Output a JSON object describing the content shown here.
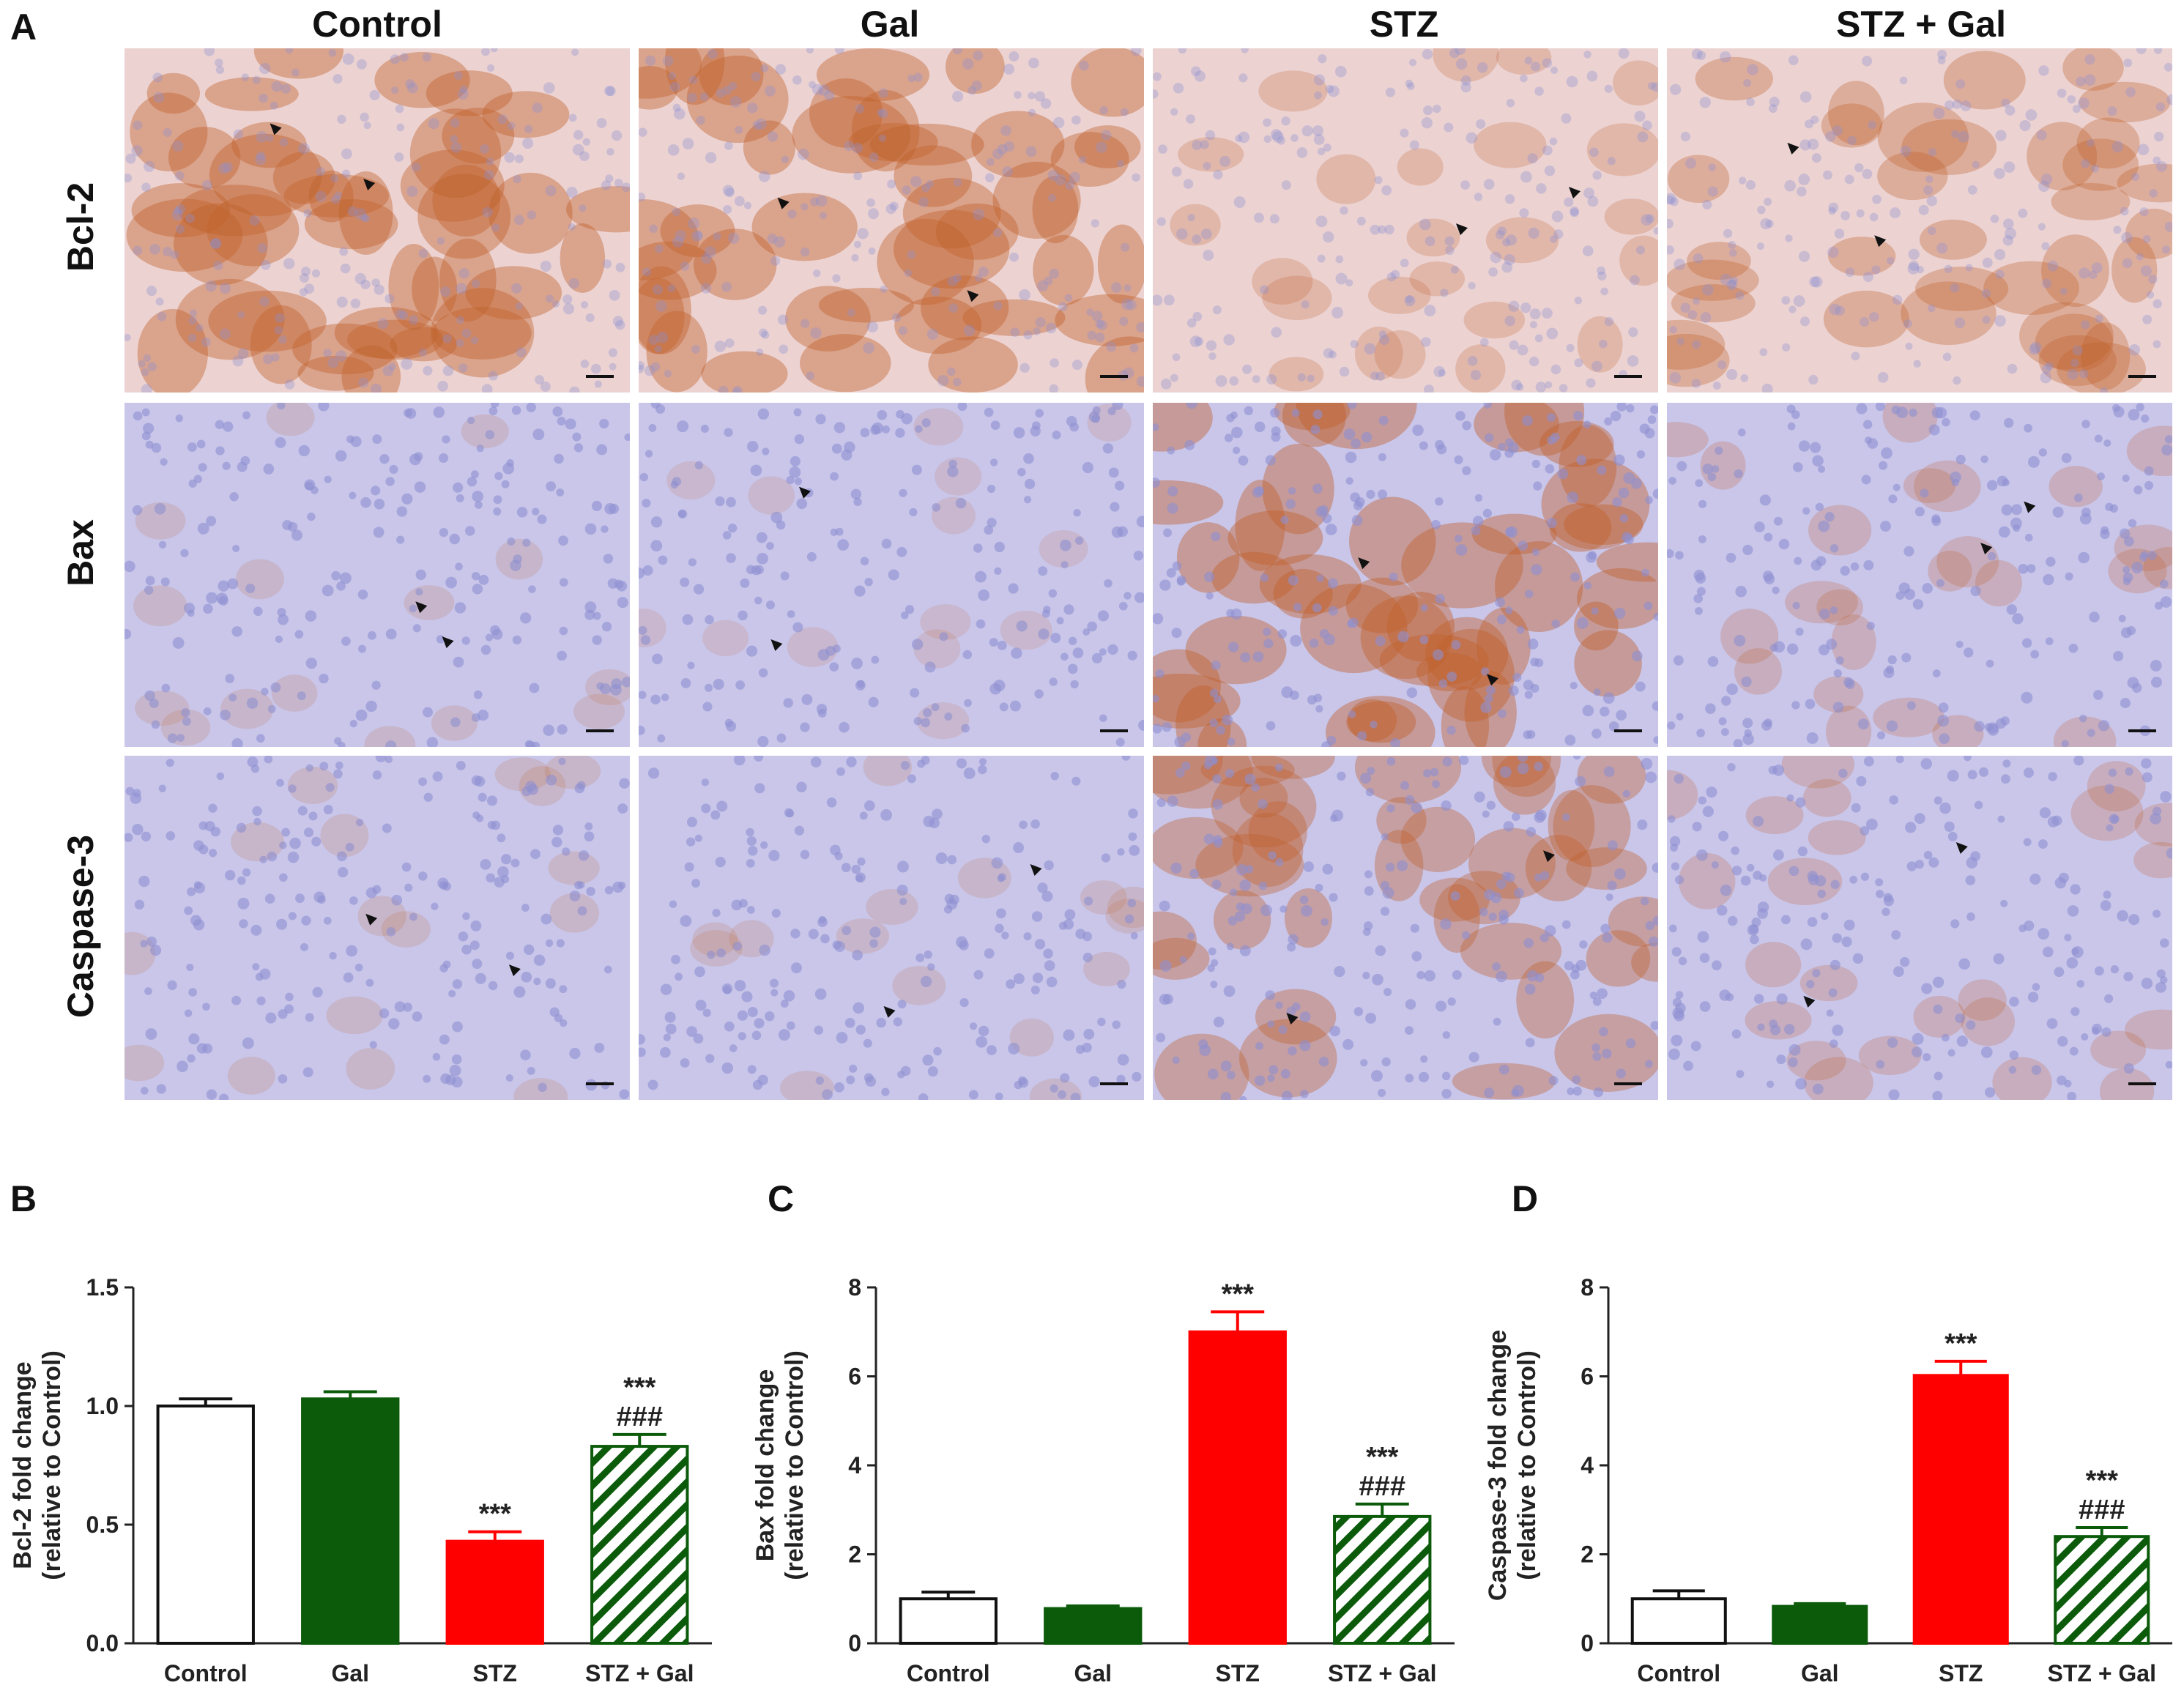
{
  "figure": {
    "panel_a_letter": "A",
    "columns": [
      "Control",
      "Gal",
      "STZ",
      "STZ + Gal"
    ],
    "rows": [
      {
        "label": "Bcl-2",
        "stain_intensity": [
          0.85,
          0.85,
          0.35,
          0.6
        ]
      },
      {
        "label": "Bax",
        "stain_intensity": [
          0.12,
          0.1,
          0.9,
          0.35
        ]
      },
      {
        "label": "Caspase-3",
        "stain_intensity": [
          0.15,
          0.12,
          0.75,
          0.35
        ]
      }
    ],
    "colors": {
      "tissue_pink": "#ecd3d2",
      "nucleus_blue": "#8d8fd1",
      "dab_brown": "#c0622c",
      "counter_blue_bg": "#b9bde6",
      "bar_control": "#ffffff",
      "bar_gal": "#0b5b0b",
      "bar_stz": "#ff0000",
      "bar_stz_gal_stripe": "#0b5b0b"
    }
  },
  "chart_data": [
    {
      "panel": "B",
      "type": "bar",
      "categories": [
        "Control",
        "Gal",
        "STZ",
        "STZ + Gal"
      ],
      "values": [
        1.0,
        1.03,
        0.43,
        0.83
      ],
      "errors": [
        0.03,
        0.03,
        0.04,
        0.05
      ],
      "ylabel_line1": "Bcl-2 fold change",
      "ylabel_line2": "(relative to Control)",
      "ylim": [
        0,
        1.5
      ],
      "yticks": [
        "0.0",
        "0.5",
        "1.0",
        "1.5"
      ],
      "annotations": [
        {
          "category": "STZ",
          "lines": [
            "***"
          ]
        },
        {
          "category": "STZ + Gal",
          "lines": [
            "***",
            "###"
          ]
        }
      ]
    },
    {
      "panel": "C",
      "type": "bar",
      "categories": [
        "Control",
        "Gal",
        "STZ",
        "STZ + Gal"
      ],
      "values": [
        1.0,
        0.78,
        7.0,
        2.85
      ],
      "errors": [
        0.15,
        0.06,
        0.45,
        0.28
      ],
      "ylabel_line1": "Bax fold change",
      "ylabel_line2": "(relative to Control)",
      "ylim": [
        0,
        8
      ],
      "yticks": [
        "0",
        "2",
        "4",
        "6",
        "8"
      ],
      "annotations": [
        {
          "category": "STZ",
          "lines": [
            "***"
          ]
        },
        {
          "category": "STZ + Gal",
          "lines": [
            "***",
            "###"
          ]
        }
      ]
    },
    {
      "panel": "D",
      "type": "bar",
      "categories": [
        "Control",
        "Gal",
        "STZ",
        "STZ + Gal"
      ],
      "values": [
        1.0,
        0.83,
        6.02,
        2.4
      ],
      "errors": [
        0.18,
        0.06,
        0.32,
        0.2
      ],
      "ylabel_line1": "Caspase-3 fold change",
      "ylabel_line2": "(relative to Control)",
      "ylim": [
        0,
        8
      ],
      "yticks": [
        "0",
        "2",
        "4",
        "6",
        "8"
      ],
      "annotations": [
        {
          "category": "STZ",
          "lines": [
            "***"
          ]
        },
        {
          "category": "STZ + Gal",
          "lines": [
            "***",
            "###"
          ]
        }
      ]
    }
  ]
}
